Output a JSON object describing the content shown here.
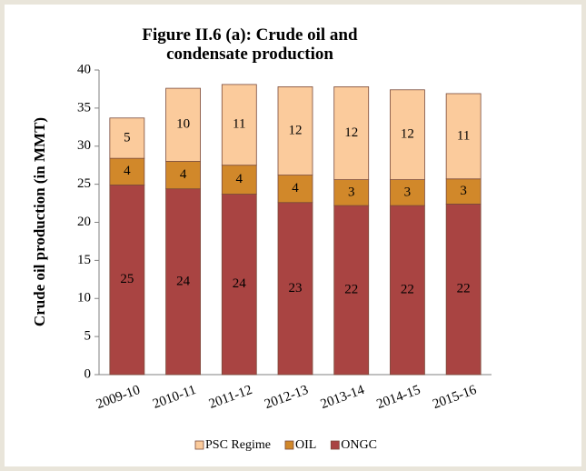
{
  "chart_data": {
    "type": "stacked_bar",
    "title": "Figure II.6 (a): Crude oil and condensate production",
    "y_label": "Crude oil production (in MMT)",
    "categories": [
      "2009-10",
      "2010-11",
      "2011-12",
      "2012-13",
      "2013-14",
      "2014-15",
      "2015-16"
    ],
    "series": [
      {
        "name": "ONGC",
        "color": "#a94442",
        "values": [
          24.9,
          24.4,
          23.7,
          22.6,
          22.2,
          22.2,
          22.4
        ],
        "value_labels": [
          "25",
          "24",
          "24",
          "23",
          "22",
          "22",
          "22"
        ]
      },
      {
        "name": "OIL",
        "color": "#d1882a",
        "values": [
          3.5,
          3.6,
          3.8,
          3.6,
          3.4,
          3.4,
          3.3
        ],
        "value_labels": [
          "4",
          "4",
          "4",
          "4",
          "3",
          "3",
          "3"
        ]
      },
      {
        "name": "PSC Regime",
        "color": "#fbcb9c",
        "values": [
          5.3,
          9.6,
          10.6,
          11.6,
          12.2,
          11.8,
          11.2
        ],
        "value_labels": [
          "5",
          "10",
          "11",
          "12",
          "12",
          "12",
          "11"
        ]
      }
    ],
    "ylim": [
      0,
      40
    ],
    "yticks": [
      0,
      5,
      10,
      15,
      20,
      25,
      30,
      35,
      40
    ]
  }
}
